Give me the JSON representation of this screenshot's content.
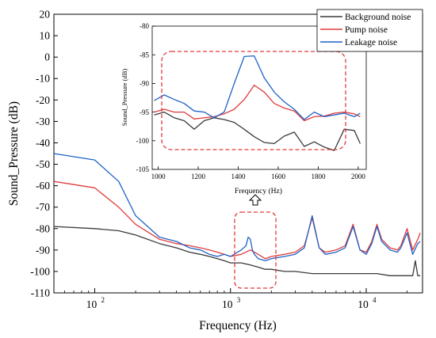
{
  "chart_data": [
    {
      "type": "line",
      "xlabel": "Frequency (Hz)",
      "ylabel": "Sound_Pressure (dB)",
      "xscale": "log",
      "xlim": [
        50,
        26000
      ],
      "ylim": [
        -110,
        20
      ],
      "xticks": [
        {
          "value": 100,
          "base": "10",
          "exp": "2"
        },
        {
          "value": 1000,
          "base": "10",
          "exp": "3"
        },
        {
          "value": 10000,
          "base": "10",
          "exp": "4"
        }
      ],
      "yticks": [
        20,
        10,
        0,
        -10,
        -20,
        -30,
        -40,
        -50,
        -60,
        -70,
        -80,
        -90,
        -100,
        -110
      ],
      "legend": {
        "position": "top-right"
      },
      "series": [
        {
          "name": "Background noise",
          "color": "#3a3a3a",
          "x": [
            50,
            100,
            150,
            200,
            300,
            400,
            500,
            600,
            700,
            800,
            900,
            1000,
            1200,
            1400,
            1600,
            1800,
            2000,
            2500,
            3000,
            4000,
            5000,
            6000,
            8000,
            10000,
            12000,
            15000,
            18000,
            20000,
            22000,
            23000,
            24000,
            25000
          ],
          "y": [
            -79,
            -80,
            -81,
            -83,
            -87,
            -89,
            -91,
            -92,
            -93,
            -94,
            -95,
            -96,
            -96,
            -97,
            -98,
            -99,
            -99,
            -100,
            -100,
            -101,
            -101,
            -101,
            -101,
            -101,
            -101,
            -102,
            -102,
            -102,
            -102,
            -95,
            -102,
            -102
          ]
        },
        {
          "name": "Pump noise",
          "color": "#e03b3b",
          "x": [
            50,
            100,
            150,
            200,
            300,
            400,
            500,
            600,
            700,
            800,
            900,
            1000,
            1200,
            1400,
            1500,
            1600,
            1800,
            2000,
            2500,
            3000,
            3500,
            4000,
            4500,
            5000,
            6000,
            7000,
            8000,
            9000,
            10000,
            11000,
            12000,
            13000,
            15000,
            17000,
            18000,
            20000,
            22000,
            24000,
            25000
          ],
          "y": [
            -58,
            -61,
            -70,
            -78,
            -85,
            -87,
            -88,
            -89,
            -90,
            -91,
            -92,
            -93,
            -92,
            -90,
            -91,
            -92,
            -94,
            -93,
            -92,
            -91,
            -88,
            -75,
            -89,
            -91,
            -90,
            -88,
            -78,
            -90,
            -91,
            -86,
            -78,
            -85,
            -89,
            -90,
            -88,
            -80,
            -90,
            -85,
            -82
          ]
        },
        {
          "name": "Leakage noise",
          "color": "#1f63c6",
          "x": [
            50,
            100,
            150,
            200,
            300,
            400,
            500,
            600,
            700,
            800,
            900,
            1000,
            1200,
            1300,
            1350,
            1400,
            1450,
            1500,
            1600,
            1800,
            2000,
            2500,
            3000,
            3500,
            4000,
            4500,
            5000,
            6000,
            7000,
            8000,
            9000,
            10000,
            11000,
            12000,
            13000,
            15000,
            17000,
            18000,
            20000,
            22000,
            24000,
            25000
          ],
          "y": [
            -45,
            -48,
            -58,
            -74,
            -84,
            -86,
            -89,
            -90,
            -92,
            -93,
            -92,
            -93,
            -90,
            -88,
            -84,
            -85,
            -90,
            -92,
            -94,
            -95,
            -94,
            -93,
            -92,
            -89,
            -74,
            -89,
            -92,
            -91,
            -89,
            -79,
            -90,
            -92,
            -87,
            -79,
            -86,
            -90,
            -91,
            -89,
            -82,
            -92,
            -87,
            -86
          ]
        }
      ]
    },
    {
      "type": "line",
      "xlabel": "Frequency (Hz)",
      "ylabel": "Sound_Pressure (dB)",
      "xlim": [
        970,
        2040
      ],
      "ylim": [
        -105,
        -80
      ],
      "xticks": [
        1000,
        1200,
        1400,
        1600,
        1800,
        2000
      ],
      "yticks": [
        -80,
        -85,
        -90,
        -95,
        -100,
        -105
      ],
      "series": [
        {
          "name": "Background noise",
          "color": "#3a3a3a",
          "x": [
            980,
            1030,
            1080,
            1130,
            1180,
            1230,
            1280,
            1330,
            1380,
            1430,
            1480,
            1530,
            1580,
            1630,
            1680,
            1730,
            1780,
            1830,
            1880,
            1930,
            1980,
            2010
          ],
          "y": [
            -95.5,
            -95,
            -96,
            -96.5,
            -98,
            -96.5,
            -96,
            -96.3,
            -96.8,
            -98,
            -99.3,
            -100.3,
            -100.5,
            -99.2,
            -98.5,
            -101,
            -100.2,
            -101.1,
            -101.7,
            -98,
            -98.2,
            -100.5
          ]
        },
        {
          "name": "Pump noise",
          "color": "#e03b3b",
          "x": [
            980,
            1030,
            1080,
            1130,
            1180,
            1230,
            1280,
            1330,
            1380,
            1430,
            1480,
            1530,
            1580,
            1630,
            1680,
            1730,
            1780,
            1830,
            1880,
            1930,
            1980,
            2010
          ],
          "y": [
            -95,
            -94.5,
            -95,
            -95,
            -96.2,
            -96,
            -95.8,
            -95.3,
            -94.5,
            -92.8,
            -90.3,
            -91.5,
            -93.5,
            -94.3,
            -94.8,
            -96.5,
            -95.8,
            -95.7,
            -95.2,
            -95,
            -95.3,
            -95.8
          ]
        },
        {
          "name": "Leakage noise",
          "color": "#1f63c6",
          "x": [
            980,
            1030,
            1080,
            1130,
            1180,
            1230,
            1280,
            1330,
            1380,
            1430,
            1480,
            1530,
            1580,
            1630,
            1680,
            1730,
            1780,
            1830,
            1880,
            1930,
            1980,
            2010
          ],
          "y": [
            -93,
            -92,
            -92.8,
            -93.5,
            -94.8,
            -95,
            -96,
            -95,
            -90,
            -85.3,
            -85.2,
            -89,
            -91.5,
            -93.2,
            -94.5,
            -96.3,
            -95,
            -95.8,
            -95.5,
            -95.2,
            -95.8,
            -95.2
          ]
        }
      ]
    }
  ]
}
